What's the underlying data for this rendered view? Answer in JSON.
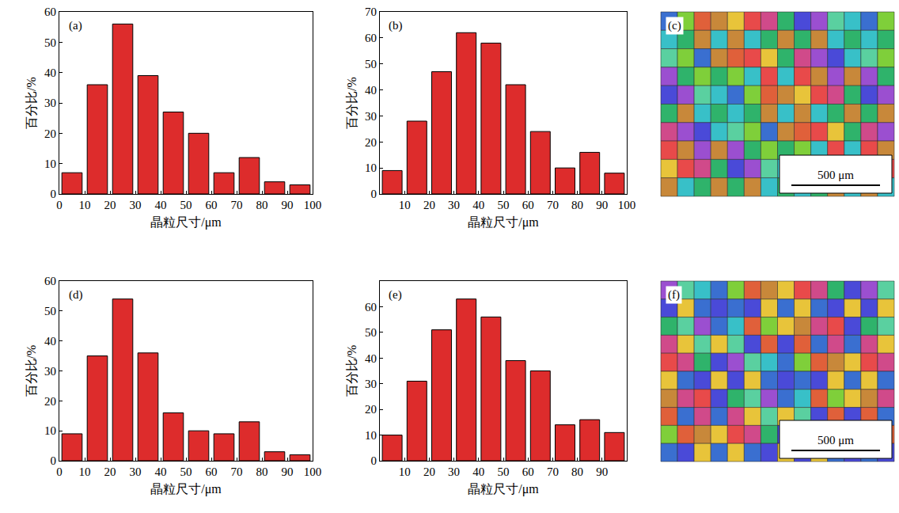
{
  "chart_data": [
    {
      "type": "histogram",
      "panel": "(a)",
      "x_label": "晶粒尺寸/μm",
      "y_label": "百分比/%",
      "bins": [
        0,
        10,
        20,
        30,
        40,
        50,
        60,
        70,
        80,
        90,
        100
      ],
      "values": [
        7,
        36,
        56,
        39,
        27,
        20,
        7,
        12,
        4,
        3
      ],
      "color": "#dd2c2c",
      "xlim": [
        0,
        100
      ],
      "xticks": [
        0,
        10,
        20,
        30,
        40,
        50,
        60,
        70,
        80,
        90,
        100
      ],
      "ylim": [
        0,
        60
      ],
      "yticks": [
        0,
        10,
        20,
        30,
        40,
        50,
        60
      ],
      "grid": false
    },
    {
      "type": "histogram",
      "panel": "(b)",
      "x_label": "晶粒尺寸/μm",
      "y_label": "百分比/%",
      "bins": [
        0,
        10,
        20,
        30,
        40,
        50,
        60,
        70,
        80,
        90,
        100
      ],
      "values": [
        9,
        28,
        47,
        62,
        58,
        42,
        24,
        10,
        16,
        8
      ],
      "color": "#dd2c2c",
      "xlim": [
        0,
        100
      ],
      "xticks": [
        10,
        20,
        30,
        40,
        50,
        60,
        70,
        80,
        90,
        100
      ],
      "ylim": [
        0,
        70
      ],
      "yticks": [
        0,
        10,
        20,
        30,
        40,
        50,
        60,
        70
      ],
      "grid": false
    },
    {
      "type": "histogram",
      "panel": "(d)",
      "x_label": "晶粒尺寸/μm",
      "y_label": "百分比/%",
      "bins": [
        0,
        10,
        20,
        30,
        40,
        50,
        60,
        70,
        80,
        90,
        100
      ],
      "values": [
        9,
        35,
        54,
        36,
        16,
        10,
        9,
        13,
        3,
        2
      ],
      "color": "#dd2c2c",
      "xlim": [
        0,
        100
      ],
      "xticks": [
        0,
        10,
        20,
        30,
        40,
        50,
        60,
        70,
        80,
        90,
        100
      ],
      "ylim": [
        0,
        60
      ],
      "yticks": [
        0,
        10,
        20,
        30,
        40,
        50,
        60
      ],
      "grid": false
    },
    {
      "type": "histogram",
      "panel": "(e)",
      "x_label": "晶粒尺寸/μm",
      "y_label": "百分比/%",
      "bins": [
        0,
        10,
        20,
        30,
        40,
        50,
        60,
        70,
        80,
        90,
        100
      ],
      "values": [
        10,
        31,
        51,
        63,
        56,
        39,
        35,
        14,
        16,
        11
      ],
      "color": "#dd2c2c",
      "xlim": [
        0,
        100
      ],
      "xticks": [
        10,
        20,
        30,
        40,
        50,
        60,
        70,
        80,
        90
      ],
      "ylim": [
        0,
        70
      ],
      "yticks": [
        0,
        10,
        20,
        30,
        40,
        50,
        60
      ],
      "grid": false
    }
  ],
  "images": [
    {
      "panel": "(c)",
      "scale_bar": "500 μm"
    },
    {
      "panel": "(f)",
      "scale_bar": "500 μm"
    }
  ]
}
